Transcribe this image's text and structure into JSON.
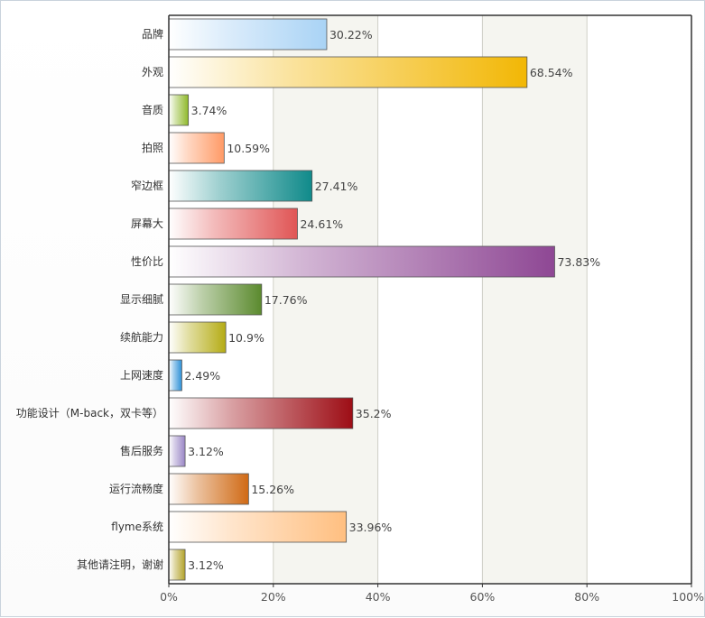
{
  "chart_data": {
    "type": "bar",
    "orientation": "horizontal",
    "categories": [
      "品牌",
      "外观",
      "音质",
      "拍照",
      "窄边框",
      "屏幕大",
      "性价比",
      "显示细腻",
      "续航能力",
      "上网速度",
      "功能设计（M-back，双卡等）",
      "售后服务",
      "运行流畅度",
      "flyme系统",
      "其他请注明，谢谢"
    ],
    "values": [
      30.22,
      68.54,
      3.74,
      10.59,
      27.41,
      24.61,
      73.83,
      17.76,
      10.9,
      2.49,
      35.2,
      3.12,
      15.26,
      33.96,
      3.12
    ],
    "value_labels": [
      "30.22%",
      "68.54%",
      "3.74%",
      "10.59%",
      "27.41%",
      "24.61%",
      "73.83%",
      "17.76%",
      "10.9%",
      "2.49%",
      "35.2%",
      "3.12%",
      "15.26%",
      "33.96%",
      "3.12%"
    ],
    "colors": [
      "#a9d3f5",
      "#f2b705",
      "#8fb92a",
      "#ff9a66",
      "#0f8a8a",
      "#e05555",
      "#8e4794",
      "#5b8a2e",
      "#b5ac15",
      "#2b8fd6",
      "#9d0d15",
      "#9a86c6",
      "#d06a15",
      "#ffbf80",
      "#b3a32a"
    ],
    "xlim": [
      0,
      100
    ],
    "ticks": [
      0,
      20,
      40,
      60,
      80,
      100
    ],
    "tick_labels": [
      "0%",
      "20%",
      "40%",
      "60%",
      "80%",
      "100%"
    ],
    "grid": true,
    "title": "",
    "xlabel": "",
    "ylabel": ""
  }
}
